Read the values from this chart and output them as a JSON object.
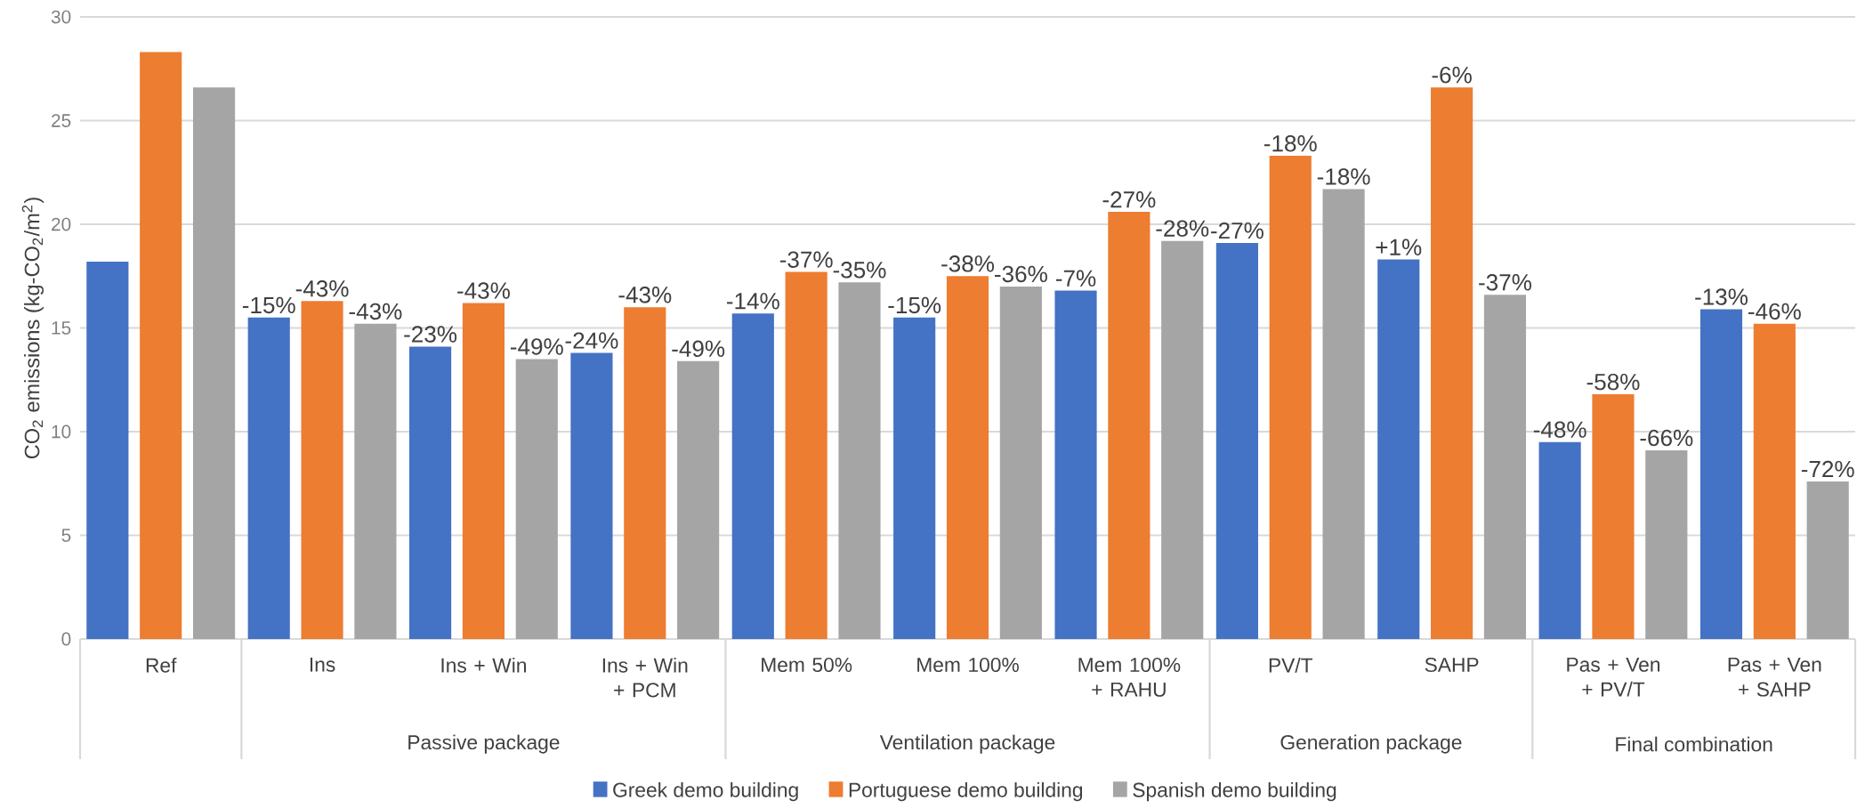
{
  "chart_data": {
    "type": "bar",
    "ylabel": "CO$_{2}$ emissions (kg-CO$_{2}$/m$^{2}$)",
    "categories": [
      "Ref",
      "Ins",
      "Ins + Win",
      "Ins + Win + PCM",
      "Mem 50%",
      "Mem 100%",
      "Mem 100% + RAHU",
      "PV/T",
      "SAHP",
      "Pas + Ven + PV/T",
      "Pas + Ven + SAHP"
    ],
    "series": [
      {
        "name": "Greek demo building",
        "color": "#4472c4",
        "values": [
          18.2,
          15.5,
          14.1,
          13.8,
          15.7,
          15.5,
          16.8,
          19.1,
          18.3,
          9.5,
          15.9
        ]
      },
      {
        "name": "Portuguese demo building",
        "color": "#ed7d31",
        "values": [
          28.3,
          16.3,
          16.2,
          16.0,
          17.7,
          17.5,
          20.6,
          23.3,
          26.6,
          11.8,
          15.2
        ]
      },
      {
        "name": "Spanish demo building",
        "color": "#a5a5a5",
        "values": [
          26.6,
          15.2,
          13.5,
          13.4,
          17.2,
          17.0,
          19.2,
          21.7,
          16.6,
          9.1,
          7.6
        ]
      }
    ],
    "ylim": [
      0,
      30
    ],
    "yticks": [
      0,
      5,
      10,
      15,
      20,
      25,
      30
    ],
    "grid": "y",
    "legend": "bottom",
    "annotations": [
      "-15%",
      "-43%",
      "-43%",
      "-23%",
      "-43%",
      "-49%",
      "-24%",
      "-43%",
      "-49%",
      "-14%",
      "-37%",
      "-35%",
      "-15%",
      "-38%",
      "-36%",
      "-7%",
      "-27%",
      "-28%",
      "-27%",
      "-18%",
      "-18%",
      "+1%",
      "-6%",
      "-37%",
      "-48%",
      "-58%",
      "-66%",
      "-13%",
      "-46%",
      "-72%",
      "Passive package",
      "Ventilation package",
      "Generation package",
      "Final combination"
    ]
  }
}
